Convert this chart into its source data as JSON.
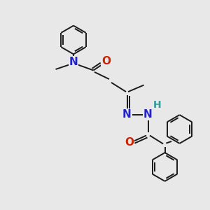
{
  "background_color": "#e8e8e8",
  "bond_color": "#1a1a1a",
  "atom_colors": {
    "N": "#2222cc",
    "O": "#cc2200",
    "H_on_N": "#339999",
    "C": "#1a1a1a"
  },
  "figsize": [
    3.0,
    3.0
  ],
  "dpi": 100
}
